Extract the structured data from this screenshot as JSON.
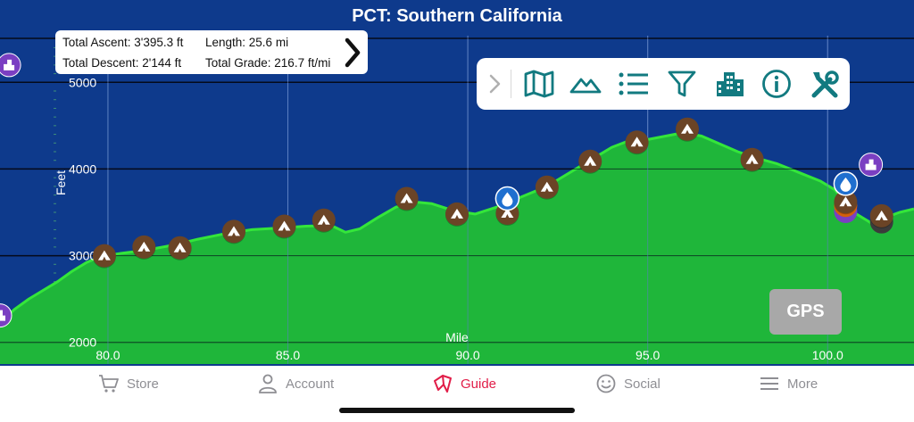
{
  "title": "PCT: Southern California",
  "stats": {
    "total_ascent": "Total Ascent: 3'395.3 ft",
    "total_descent": "Total Descent: 2'144 ft",
    "length": "Length: 25.6 mi",
    "total_grade": "Total Grade: 216.7 ft/mi"
  },
  "toolbar": {
    "items": [
      "chevron-right-icon",
      "map-icon",
      "mountains-icon",
      "list-icon",
      "filter-icon",
      "buildings-icon",
      "info-icon",
      "tools-icon"
    ]
  },
  "gps_label": "GPS",
  "tabs": [
    {
      "label": "Store",
      "icon": "cart-icon",
      "active": false
    },
    {
      "label": "Account",
      "icon": "person-icon",
      "active": false
    },
    {
      "label": "Guide",
      "icon": "guide-icon",
      "active": true
    },
    {
      "label": "Social",
      "icon": "smiley-icon",
      "active": false
    },
    {
      "label": "More",
      "icon": "menu-icon",
      "active": false
    }
  ],
  "colors": {
    "background": "#0e3a8c",
    "fill": "#1fb63a",
    "line": "#34e63a",
    "camp": "#6b4426",
    "water": "#1f6fcf",
    "town": "#7a3fc2",
    "toolbar_icon": "#127a80",
    "active_tab": "#e11d48"
  },
  "chart_data": {
    "type": "area",
    "xlabel": "Mile",
    "ylabel": "Feet",
    "xlim": [
      77.0,
      102.4
    ],
    "ylim": [
      1750,
      5950
    ],
    "x_ticks": [
      "80.0",
      "85.0",
      "90.0",
      "95.0",
      "100.0"
    ],
    "x_tick_values": [
      80.0,
      85.0,
      90.0,
      95.0,
      100.0
    ],
    "y_ticks": [
      "2000",
      "3000",
      "4000",
      "5000"
    ],
    "y_tick_values": [
      2000,
      3000,
      4000,
      5000
    ],
    "grid": true,
    "profile": [
      [
        77.0,
        2220
      ],
      [
        77.4,
        2380
      ],
      [
        77.8,
        2500
      ],
      [
        78.2,
        2600
      ],
      [
        78.6,
        2700
      ],
      [
        79.0,
        2820
      ],
      [
        79.4,
        2920
      ],
      [
        79.8,
        2990
      ],
      [
        80.4,
        3030
      ],
      [
        81.0,
        3060
      ],
      [
        81.8,
        3120
      ],
      [
        82.5,
        3190
      ],
      [
        83.2,
        3250
      ],
      [
        84.0,
        3300
      ],
      [
        84.8,
        3320
      ],
      [
        85.5,
        3340
      ],
      [
        86.2,
        3350
      ],
      [
        86.6,
        3270
      ],
      [
        87.0,
        3310
      ],
      [
        87.5,
        3440
      ],
      [
        88.0,
        3560
      ],
      [
        88.5,
        3620
      ],
      [
        89.0,
        3600
      ],
      [
        89.6,
        3520
      ],
      [
        90.2,
        3480
      ],
      [
        90.8,
        3560
      ],
      [
        91.5,
        3680
      ],
      [
        92.2,
        3800
      ],
      [
        92.8,
        3950
      ],
      [
        93.4,
        4100
      ],
      [
        94.0,
        4250
      ],
      [
        94.5,
        4330
      ],
      [
        95.0,
        4340
      ],
      [
        95.5,
        4380
      ],
      [
        96.0,
        4420
      ],
      [
        96.5,
        4380
      ],
      [
        97.0,
        4290
      ],
      [
        97.5,
        4200
      ],
      [
        98.0,
        4130
      ],
      [
        98.6,
        4060
      ],
      [
        99.2,
        3960
      ],
      [
        99.8,
        3860
      ],
      [
        100.2,
        3760
      ],
      [
        100.5,
        3620
      ],
      [
        100.8,
        3480
      ],
      [
        101.2,
        3380
      ],
      [
        101.6,
        3440
      ],
      [
        102.0,
        3500
      ],
      [
        102.4,
        3540
      ]
    ],
    "camps": [
      [
        79.9,
        3000
      ],
      [
        81.0,
        3100
      ],
      [
        82.0,
        3090
      ],
      [
        83.5,
        3280
      ],
      [
        84.9,
        3340
      ],
      [
        86.0,
        3410
      ],
      [
        88.3,
        3660
      ],
      [
        89.7,
        3480
      ],
      [
        91.1,
        3490
      ],
      [
        92.2,
        3790
      ],
      [
        93.4,
        4090
      ],
      [
        94.7,
        4310
      ],
      [
        96.1,
        4460
      ],
      [
        97.9,
        4110
      ],
      [
        100.5,
        3620
      ],
      [
        101.5,
        3460
      ]
    ],
    "water": [
      [
        91.1,
        3660
      ],
      [
        100.5,
        3830
      ]
    ],
    "towns": [
      [
        77.25,
        5200
      ],
      [
        77.0,
        2310
      ],
      [
        101.2,
        4050
      ]
    ],
    "stacked": [
      [
        100.5,
        3510
      ],
      [
        100.5,
        3580
      ],
      [
        101.5,
        3390
      ]
    ]
  }
}
